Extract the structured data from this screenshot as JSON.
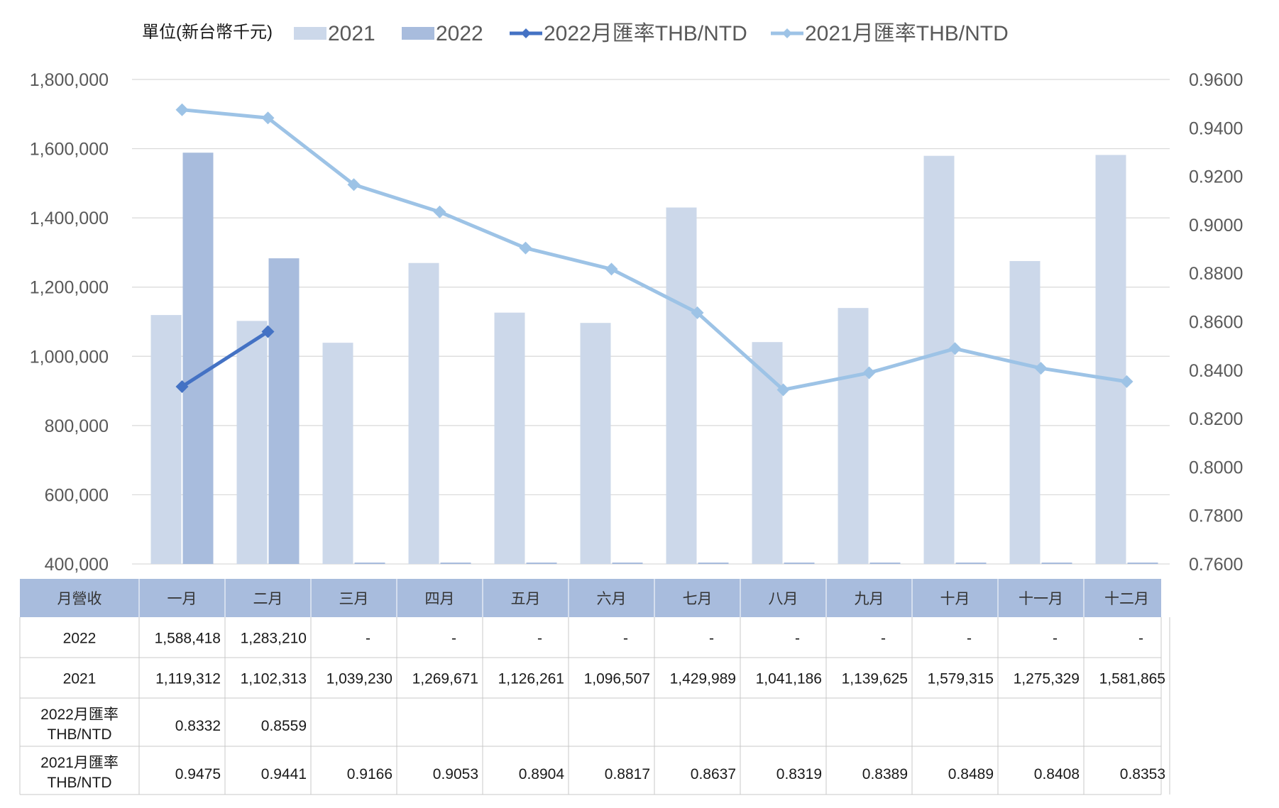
{
  "chart_data": {
    "type": "bar",
    "unit_label": "單位(新台幣千元)",
    "categories": [
      "一月",
      "二月",
      "三月",
      "四月",
      "五月",
      "六月",
      "七月",
      "八月",
      "九月",
      "十月",
      "十一月",
      "十二月"
    ],
    "series": [
      {
        "name": "2021",
        "type": "bar",
        "axis": "left",
        "color": "#ccd8ea",
        "values": [
          1119312,
          1102313,
          1039230,
          1269671,
          1126261,
          1096507,
          1429989,
          1041186,
          1139625,
          1579315,
          1275329,
          1581865
        ]
      },
      {
        "name": "2022",
        "type": "bar",
        "axis": "left",
        "color": "#a8bcdd",
        "values": [
          1588418,
          1283210,
          null,
          null,
          null,
          null,
          null,
          null,
          null,
          null,
          null,
          null
        ]
      },
      {
        "name": "2022月匯率THB/NTD",
        "type": "line",
        "axis": "right",
        "color": "#4472c4",
        "values": [
          0.8332,
          0.8559,
          null,
          null,
          null,
          null,
          null,
          null,
          null,
          null,
          null,
          null
        ]
      },
      {
        "name": "2021月匯率THB/NTD",
        "type": "line",
        "axis": "right",
        "color": "#9dc3e6",
        "values": [
          0.9475,
          0.9441,
          0.9166,
          0.9053,
          0.8904,
          0.8817,
          0.8637,
          0.8319,
          0.8389,
          0.8489,
          0.8408,
          0.8353
        ]
      }
    ],
    "y_left": {
      "min": 400000,
      "max": 1800000,
      "step": 200000,
      "tick_labels": [
        "400,000",
        "600,000",
        "800,000",
        "1,000,000",
        "1,200,000",
        "1,400,000",
        "1,600,000",
        "1,800,000"
      ]
    },
    "y_right": {
      "min": 0.76,
      "max": 0.96,
      "step": 0.02,
      "tick_labels": [
        "0.7600",
        "0.7800",
        "0.8000",
        "0.8200",
        "0.8400",
        "0.8600",
        "0.8800",
        "0.9000",
        "0.9200",
        "0.9400",
        "0.9600"
      ]
    },
    "grid": true,
    "legend_position": "top",
    "data_table": {
      "header_label": "月營收",
      "rows": [
        {
          "label": "2022",
          "cells": [
            "1,588,418",
            "1,283,210",
            "-",
            "-",
            "-",
            "-",
            "-",
            "-",
            "-",
            "-",
            "-",
            "-"
          ]
        },
        {
          "label": "2021",
          "cells": [
            "1,119,312",
            "1,102,313",
            "1,039,230",
            "1,269,671",
            "1,126,261",
            "1,096,507",
            "1,429,989",
            "1,041,186",
            "1,139,625",
            "1,579,315",
            "1,275,329",
            "1,581,865"
          ]
        },
        {
          "label_lines": [
            "2022月匯率",
            "THB/NTD"
          ],
          "cells": [
            "0.8332",
            "0.8559",
            "",
            "",
            "",
            "",
            "",
            "",
            "",
            "",
            "",
            ""
          ]
        },
        {
          "label_lines": [
            "2021月匯率",
            "THB/NTD"
          ],
          "cells": [
            "0.9475",
            "0.9441",
            "0.9166",
            "0.9053",
            "0.8904",
            "0.8817",
            "0.8637",
            "0.8319",
            "0.8389",
            "0.8489",
            "0.8408",
            "0.8353"
          ]
        }
      ]
    }
  }
}
